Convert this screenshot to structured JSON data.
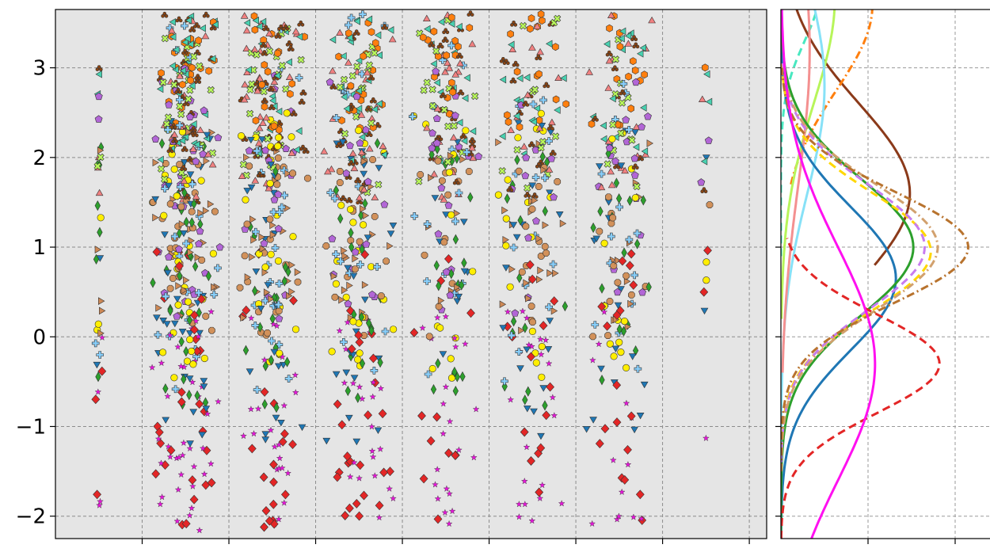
{
  "chart_data": {
    "type": "scatter",
    "title": "",
    "y_tick_labels": [
      "3",
      "2",
      "1",
      "0",
      "−1",
      "−2"
    ],
    "y_ticks": [
      3,
      2,
      1,
      0,
      -1,
      -2
    ],
    "ylim": [
      -2.25,
      3.65
    ],
    "xlim": [
      -0.5,
      7.7
    ],
    "x_tick_positions": [
      0.5,
      1.5,
      2.5,
      3.5,
      4.5,
      5.5,
      6.5,
      7.5
    ],
    "grid": true,
    "main_panel_background": "#e5e5e5",
    "strips": [
      {
        "x": 0,
        "halfwidth": 0.05,
        "count": 36
      },
      {
        "x": 1,
        "halfwidth": 0.42,
        "count": 420
      },
      {
        "x": 2,
        "halfwidth": 0.42,
        "count": 330
      },
      {
        "x": 3,
        "halfwidth": 0.42,
        "count": 300
      },
      {
        "x": 4,
        "halfwidth": 0.42,
        "count": 230
      },
      {
        "x": 5,
        "halfwidth": 0.42,
        "count": 230
      },
      {
        "x": 6,
        "halfwidth": 0.42,
        "count": 210
      },
      {
        "x": 7,
        "halfwidth": 0.07,
        "count": 16
      }
    ],
    "series": [
      {
        "marker": "hexagon",
        "color": "#ff7f0e",
        "y_range": [
          2.3,
          3.6
        ]
      },
      {
        "marker": "triangle-left",
        "color": "#48d1b0",
        "y_range": [
          1.9,
          3.6
        ]
      },
      {
        "marker": "club",
        "color": "#8b4513",
        "y_range": [
          1.5,
          3.6
        ]
      },
      {
        "marker": "x-filled",
        "color": "#b7f55a",
        "y_range": [
          1.6,
          3.6
        ]
      },
      {
        "marker": "plus-filled",
        "color": "#87cefa",
        "y_range": [
          -0.6,
          3.6
        ]
      },
      {
        "marker": "triangle-up",
        "color": "#f08080",
        "y_range": [
          1.5,
          3.6
        ]
      },
      {
        "marker": "pentagon",
        "color": "#b266d6",
        "y_range": [
          0.2,
          3.0
        ]
      },
      {
        "marker": "diamond-thin",
        "color": "#2ca02c",
        "y_range": [
          -0.8,
          2.2
        ]
      },
      {
        "marker": "circle",
        "color": "#ffee00",
        "y_range": [
          -0.5,
          2.5
        ]
      },
      {
        "marker": "triangle-right",
        "color": "#cd8855",
        "y_range": [
          0.0,
          2.3
        ]
      },
      {
        "marker": "octagon",
        "color": "#d2915a",
        "y_range": [
          0.0,
          2.0
        ]
      },
      {
        "marker": "triangle-down",
        "color": "#1f77b4",
        "y_range": [
          -1.2,
          2.5
        ]
      },
      {
        "marker": "diamond",
        "color": "#e32626",
        "y_range": [
          -2.2,
          1.0
        ]
      },
      {
        "marker": "star",
        "color": "#e614d9",
        "y_range": [
          -2.2,
          0.3
        ]
      }
    ],
    "side_panel": {
      "type": "density",
      "xlim": [
        0,
        2.4
      ],
      "x_gridlines": [
        1,
        2
      ],
      "curves": [
        {
          "color": "#8b3a1a",
          "style": "solid",
          "mean": 1.6,
          "sd": 1.0,
          "amp": 1.48,
          "y_range": [
            0.8,
            3.65
          ]
        },
        {
          "color": "#ff7f0e",
          "style": "dashdot",
          "mean": 3.7,
          "sd": 0.95,
          "amp": 1.05,
          "y_range": [
            1.7,
            3.65
          ]
        },
        {
          "color": "#b7f55a",
          "style": "solid",
          "mean": 3.8,
          "sd": 1.2,
          "amp": 0.62,
          "y_range": [
            0.2,
            3.65
          ]
        },
        {
          "color": "#48e8c0",
          "style": "dashed",
          "mean": 3.9,
          "sd": 0.6,
          "amp": 0.45,
          "y_range": [
            0.9,
            3.65
          ]
        },
        {
          "color": "#87e1f7",
          "style": "solid",
          "mean": 2.8,
          "sd": 1.2,
          "amp": 0.5,
          "y_range": [
            -2.25,
            3.65
          ]
        },
        {
          "color": "#f49090",
          "style": "solid",
          "mean": 3.2,
          "sd": 1.5,
          "amp": 0.33,
          "y_range": [
            -0.4,
            3.65
          ]
        },
        {
          "color": "#1f77b4",
          "style": "solid",
          "mean": 0.65,
          "sd": 0.8,
          "amp": 1.32,
          "y_range": [
            -2.25,
            3.65
          ]
        },
        {
          "color": "#2ca02c",
          "style": "solid",
          "mean": 1.0,
          "sd": 0.76,
          "amp": 1.52,
          "y_range": [
            -2.25,
            3.65
          ]
        },
        {
          "color": "#ffd700",
          "style": "dashed",
          "mean": 0.95,
          "sd": 0.66,
          "amp": 1.72,
          "y_range": [
            -1.4,
            3.1
          ]
        },
        {
          "color": "#c77cf0",
          "style": "dashed",
          "mean": 1.0,
          "sd": 0.7,
          "amp": 1.65,
          "y_range": [
            -1.4,
            3.1
          ]
        },
        {
          "color": "#d2a16e",
          "style": "dashdot",
          "mean": 1.0,
          "sd": 0.7,
          "amp": 1.8,
          "y_range": [
            -1.5,
            3.0
          ]
        },
        {
          "color": "#b8732e",
          "style": "dashdot",
          "mean": 1.0,
          "sd": 0.62,
          "amp": 2.15,
          "y_range": [
            -1.5,
            3.0
          ]
        },
        {
          "color": "#e32626",
          "style": "dashed",
          "mean": -0.3,
          "sd": 0.55,
          "amp": 1.82,
          "y_range": [
            -2.25,
            1.1
          ]
        },
        {
          "color": "#ff10f0",
          "style": "solid",
          "mean": -0.3,
          "sd": 1.3,
          "amp": 1.08,
          "y_range": [
            -2.25,
            3.65
          ]
        }
      ]
    }
  }
}
